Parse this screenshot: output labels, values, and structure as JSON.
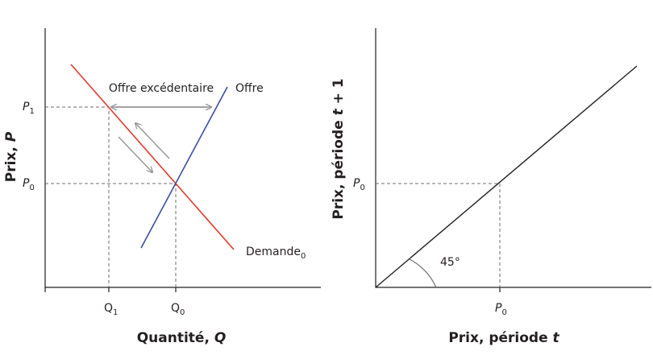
{
  "left": {
    "y_title": {
      "text": "Prix, ",
      "italic": "P"
    },
    "x_title": {
      "text": "Quantité, ",
      "italic": "Q"
    },
    "p1": {
      "text": "P",
      "sub": "1"
    },
    "p0": {
      "text": "P",
      "sub": "0"
    },
    "q1": {
      "text": "Q",
      "sub": "1"
    },
    "q0": {
      "text": "Q",
      "sub": "0"
    },
    "excess": "Offre excédentaire",
    "supply": "Offre",
    "demand": {
      "text": "Demande",
      "sub": "0"
    }
  },
  "right": {
    "y_title": {
      "text": "Prix, période ",
      "italic": "t",
      "rest": " + 1"
    },
    "x_title": {
      "text": "Prix, période ",
      "italic": "t"
    },
    "p0_y": {
      "text": "P",
      "sub": "0"
    },
    "p0_x": {
      "text": "P",
      "sub": "0"
    },
    "angle": "45°"
  }
}
